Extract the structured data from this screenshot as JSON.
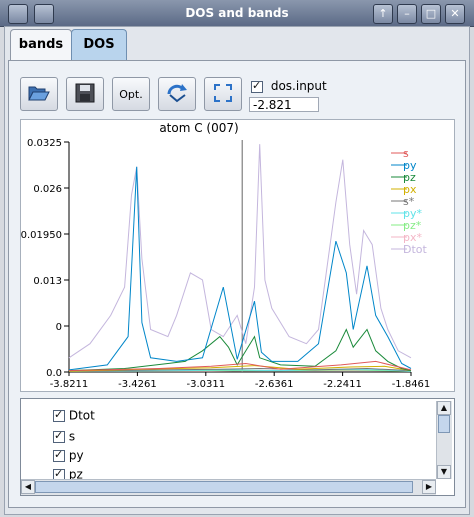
{
  "window": {
    "title": "DOS and bands"
  },
  "tabs": [
    {
      "label": "bands",
      "selected": false
    },
    {
      "label": "DOS",
      "selected": true
    }
  ],
  "toolbar": {
    "open_icon": "folder-open-icon",
    "save_icon": "floppy-disk-icon",
    "options_label": "Opt.",
    "refresh_icon": "refresh-arrow-icon",
    "zoom_icon": "expand-arrows-icon",
    "dos_input_label": "dos.input",
    "dos_input_checked": true,
    "value_field": "-2.821"
  },
  "chart_data": {
    "type": "line",
    "title": "atom C (007)",
    "xlim": [
      -3.8211,
      -1.8461
    ],
    "ylim": [
      0,
      0.0325
    ],
    "x_ticks": [
      "-3.8211",
      "-3.4261",
      "-3.0311",
      "-2.6361",
      "-2.2411",
      "-1.8461"
    ],
    "y_ticks": [
      "0.0",
      "0",
      "0.013",
      "0.01950",
      "0.026",
      "0.0325"
    ],
    "marker_x": -2.821,
    "series": [
      {
        "name": "s",
        "color": "#e05a5a",
        "x": [
          -3.8211,
          -3.3,
          -3.0,
          -2.8,
          -2.6,
          -2.25,
          -2.05,
          -1.8461
        ],
        "y": [
          0.0002,
          0.0005,
          0.0008,
          0.0012,
          0.0004,
          0.001,
          0.0015,
          0.0003
        ]
      },
      {
        "name": "py",
        "color": "#0086c9",
        "x": [
          -3.8211,
          -3.6,
          -3.48,
          -3.43,
          -3.4,
          -3.35,
          -3.2,
          -3.05,
          -2.93,
          -2.85,
          -2.75,
          -2.71,
          -2.65,
          -2.5,
          -2.38,
          -2.28,
          -2.22,
          -2.18,
          -2.1,
          -2.05,
          -1.98,
          -1.9,
          -1.8461
        ],
        "y": [
          0.0003,
          0.001,
          0.005,
          0.029,
          0.007,
          0.002,
          0.0015,
          0.002,
          0.012,
          0.0018,
          0.01,
          0.0028,
          0.0015,
          0.0015,
          0.004,
          0.0185,
          0.014,
          0.006,
          0.015,
          0.008,
          0.005,
          0.0012,
          0.0005
        ]
      },
      {
        "name": "pz",
        "color": "#1a8a3a",
        "x": [
          -3.8211,
          -3.5,
          -3.25,
          -3.15,
          -3.05,
          -2.95,
          -2.9,
          -2.85,
          -2.75,
          -2.72,
          -2.6,
          -2.4,
          -2.28,
          -2.22,
          -2.18,
          -2.1,
          -2.05,
          -1.98,
          -1.9,
          -1.8461
        ],
        "y": [
          0.0002,
          0.0005,
          0.0012,
          0.0015,
          0.003,
          0.005,
          0.0035,
          0.001,
          0.005,
          0.002,
          0.001,
          0.0008,
          0.003,
          0.006,
          0.0035,
          0.006,
          0.003,
          0.0015,
          0.0005,
          0.0002
        ]
      },
      {
        "name": "px",
        "color": "#d2b000",
        "x": [
          -3.8211,
          -3.4,
          -3.0,
          -2.75,
          -2.5,
          -2.2,
          -2.0,
          -1.8461
        ],
        "y": [
          0.0001,
          0.0004,
          0.0006,
          0.0009,
          0.0004,
          0.0007,
          0.0008,
          0.0002
        ]
      },
      {
        "name": "s*",
        "color": "#777777",
        "x": [
          -3.8211,
          -3.3,
          -2.95,
          -2.72,
          -2.4,
          -2.1,
          -1.8461
        ],
        "y": [
          0.0001,
          0.0003,
          0.0004,
          0.0005,
          0.0003,
          0.0005,
          0.0002
        ]
      },
      {
        "name": "py*",
        "color": "#62e3e8",
        "x": [
          -3.8211,
          -3.2,
          -2.9,
          -2.6,
          -2.3,
          -2.0,
          -1.8461
        ],
        "y": [
          0.0001,
          0.0002,
          0.0003,
          0.0002,
          0.0004,
          0.0003,
          0.0001
        ]
      },
      {
        "name": "pz*",
        "color": "#86ec86",
        "x": [
          -3.8211,
          -3.1,
          -2.8,
          -2.5,
          -2.2,
          -1.8461
        ],
        "y": [
          0.0001,
          0.0002,
          0.0002,
          0.0002,
          0.0003,
          0.0001
        ]
      },
      {
        "name": "px*",
        "color": "#f3b6c6",
        "x": [
          -3.8211,
          -3.0,
          -2.7,
          -2.4,
          -2.1,
          -1.8461
        ],
        "y": [
          0.0001,
          0.0001,
          0.0002,
          0.0002,
          0.0002,
          0.0001
        ]
      },
      {
        "name": "Dtot",
        "color": "#c4b6dd",
        "x": [
          -3.8211,
          -3.7,
          -3.58,
          -3.5,
          -3.46,
          -3.43,
          -3.4,
          -3.35,
          -3.25,
          -3.2,
          -3.12,
          -3.05,
          -3.0,
          -2.93,
          -2.85,
          -2.8,
          -2.75,
          -2.72,
          -2.69,
          -2.65,
          -2.55,
          -2.45,
          -2.38,
          -2.28,
          -2.24,
          -2.2,
          -2.16,
          -2.12,
          -2.07,
          -2.02,
          -1.98,
          -1.92,
          -1.8461
        ],
        "y": [
          0.002,
          0.004,
          0.008,
          0.012,
          0.025,
          0.029,
          0.016,
          0.006,
          0.005,
          0.008,
          0.014,
          0.013,
          0.006,
          0.005,
          0.008,
          0.004,
          0.012,
          0.0322,
          0.013,
          0.009,
          0.005,
          0.004,
          0.006,
          0.024,
          0.03,
          0.018,
          0.011,
          0.02,
          0.018,
          0.009,
          0.006,
          0.003,
          0.002
        ]
      }
    ]
  },
  "list": {
    "items": [
      {
        "label": "Dtot",
        "checked": true
      },
      {
        "label": "s",
        "checked": true
      },
      {
        "label": "py",
        "checked": true
      },
      {
        "label": "pz",
        "checked": true
      }
    ]
  }
}
